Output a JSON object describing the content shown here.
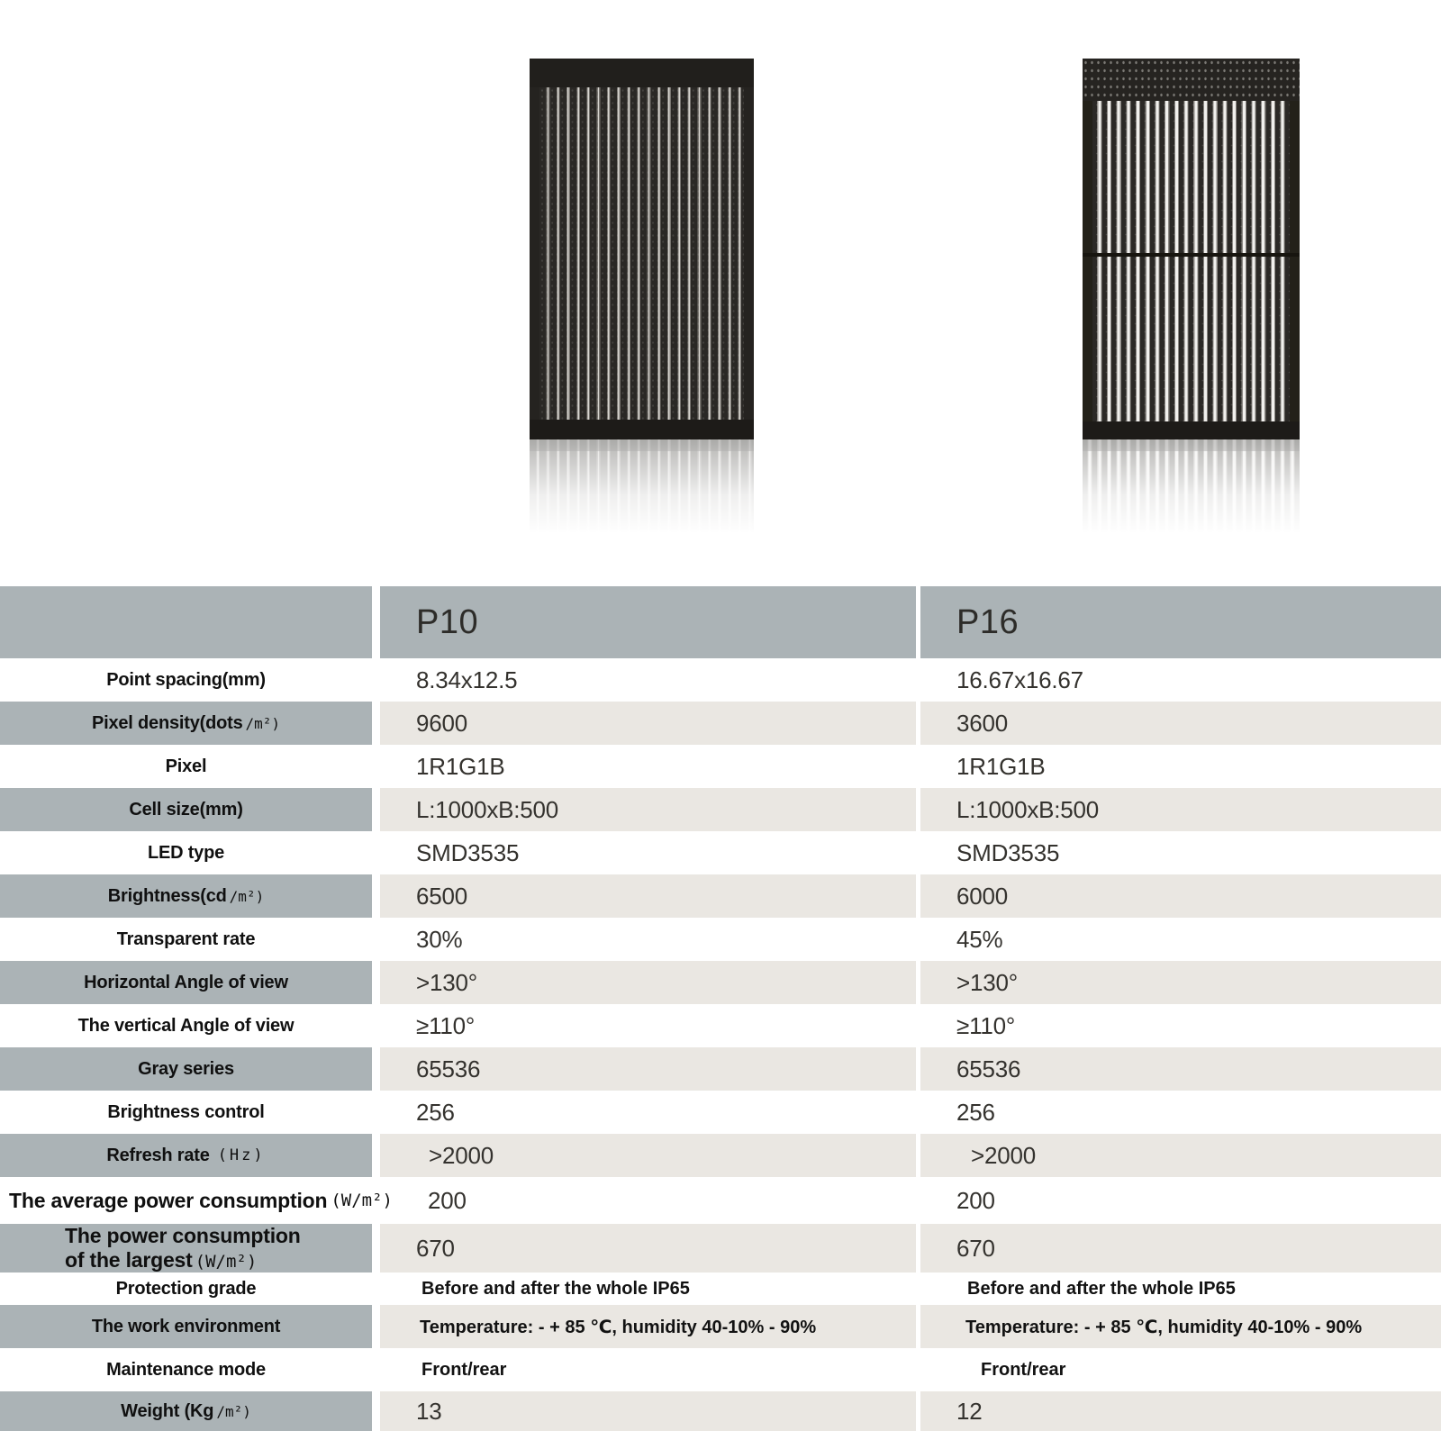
{
  "products": {
    "left_panel": "P10 LED mesh curtain panel",
    "right_panel": "P16 LED mesh curtain panel"
  },
  "table": {
    "header": {
      "p10": "P10",
      "p16": "P16"
    },
    "rows": [
      {
        "label": "Point spacing(mm)",
        "p10": "8.34x12.5",
        "p16": "16.67x16.67"
      },
      {
        "label": "Pixel density(dots",
        "unit": "/m²)",
        "p10": "9600",
        "p16": "3600"
      },
      {
        "label": "Pixel",
        "p10": "1R1G1B",
        "p16": "1R1G1B"
      },
      {
        "label": "Cell size(mm)",
        "p10": "L:1000xB:500",
        "p16": "L:1000xB:500"
      },
      {
        "label": "LED type",
        "p10": "SMD3535",
        "p16": "SMD3535"
      },
      {
        "label": "Brightness(cd",
        "unit": "/m²)",
        "p10": "6500",
        "p16": "6000"
      },
      {
        "label": "Transparent rate",
        "p10": "30%",
        "p16": "45%"
      },
      {
        "label": "Horizontal Angle of view",
        "p10": ">130°",
        "p16": ">130°"
      },
      {
        "label": "The vertical Angle of view",
        "p10": "≥110°",
        "p16": "≥110°"
      },
      {
        "label": "Gray series",
        "p10": "65536",
        "p16": "65536"
      },
      {
        "label": "Brightness control",
        "p10": "256",
        "p16": "256"
      },
      {
        "label": "Refresh rate",
        "unit": "(Hz)",
        "p10": ">2000",
        "p16": ">2000"
      },
      {
        "label": "The average power consumption",
        "unit": "(W/m²)",
        "p10": "200",
        "p16": "200"
      },
      {
        "label": "The power consumption",
        "label2": "of the largest",
        "unit": "(W/m²)",
        "p10": "670",
        "p16": "670"
      },
      {
        "label": "Protection grade",
        "p10": "Before and after the whole IP65",
        "p16": "Before and after the whole IP65"
      },
      {
        "label": "The work environment",
        "p10": "Temperature: - + 85 ℃, humidity 40-10% - 90%",
        "p16": "Temperature: - + 85 ℃, humidity 40-10% - 90%"
      },
      {
        "label": "Maintenance mode",
        "p10": "Front/rear",
        "p16": "Front/rear"
      },
      {
        "label": "Weight (Kg",
        "unit": "/m²)",
        "p10": "13",
        "p16": "12"
      }
    ]
  }
}
